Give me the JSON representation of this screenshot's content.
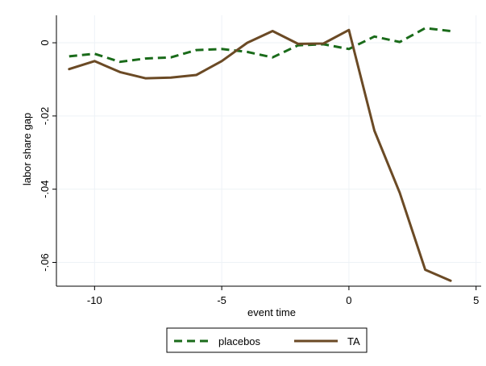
{
  "chart_data": {
    "type": "line",
    "title": "",
    "xlabel": "event time",
    "ylabel": "labor share gap",
    "xlim": [
      -11.5,
      5.2
    ],
    "ylim": [
      -0.0665,
      0.0075
    ],
    "x_ticks": [
      -10,
      -5,
      0,
      5
    ],
    "x_tick_labels": [
      "-10",
      "-5",
      "0",
      "5"
    ],
    "y_ticks": [
      0,
      -0.02,
      -0.04,
      -0.06
    ],
    "y_tick_labels": [
      "0",
      "-.02",
      "-.04",
      "-.06"
    ],
    "grid": true,
    "legend_position": "bottom",
    "series": [
      {
        "name": "placebos",
        "color": "#1a6b1a",
        "style": "dashed",
        "x": [
          -11,
          -10,
          -9,
          -8,
          -7,
          -6,
          -5,
          -4,
          -3,
          -2,
          -1,
          0,
          1,
          2,
          3,
          4
        ],
        "y": [
          -0.0037,
          -0.003,
          -0.0052,
          -0.0043,
          -0.004,
          -0.002,
          -0.0017,
          -0.0025,
          -0.004,
          -0.0007,
          -0.0004,
          -0.0017,
          0.0017,
          0.0002,
          0.004,
          0.0032
        ]
      },
      {
        "name": "TA",
        "color": "#6b4a25",
        "style": "solid",
        "x": [
          -11,
          -10,
          -9,
          -8,
          -7,
          -6,
          -5,
          -4,
          -3,
          -2,
          -1,
          0,
          1,
          2,
          3,
          4
        ],
        "y": [
          -0.0072,
          -0.005,
          -0.008,
          -0.0097,
          -0.0095,
          -0.0088,
          -0.005,
          0.0,
          0.0032,
          -0.0003,
          -0.0002,
          0.0035,
          -0.024,
          -0.041,
          -0.062,
          -0.065
        ]
      }
    ]
  }
}
